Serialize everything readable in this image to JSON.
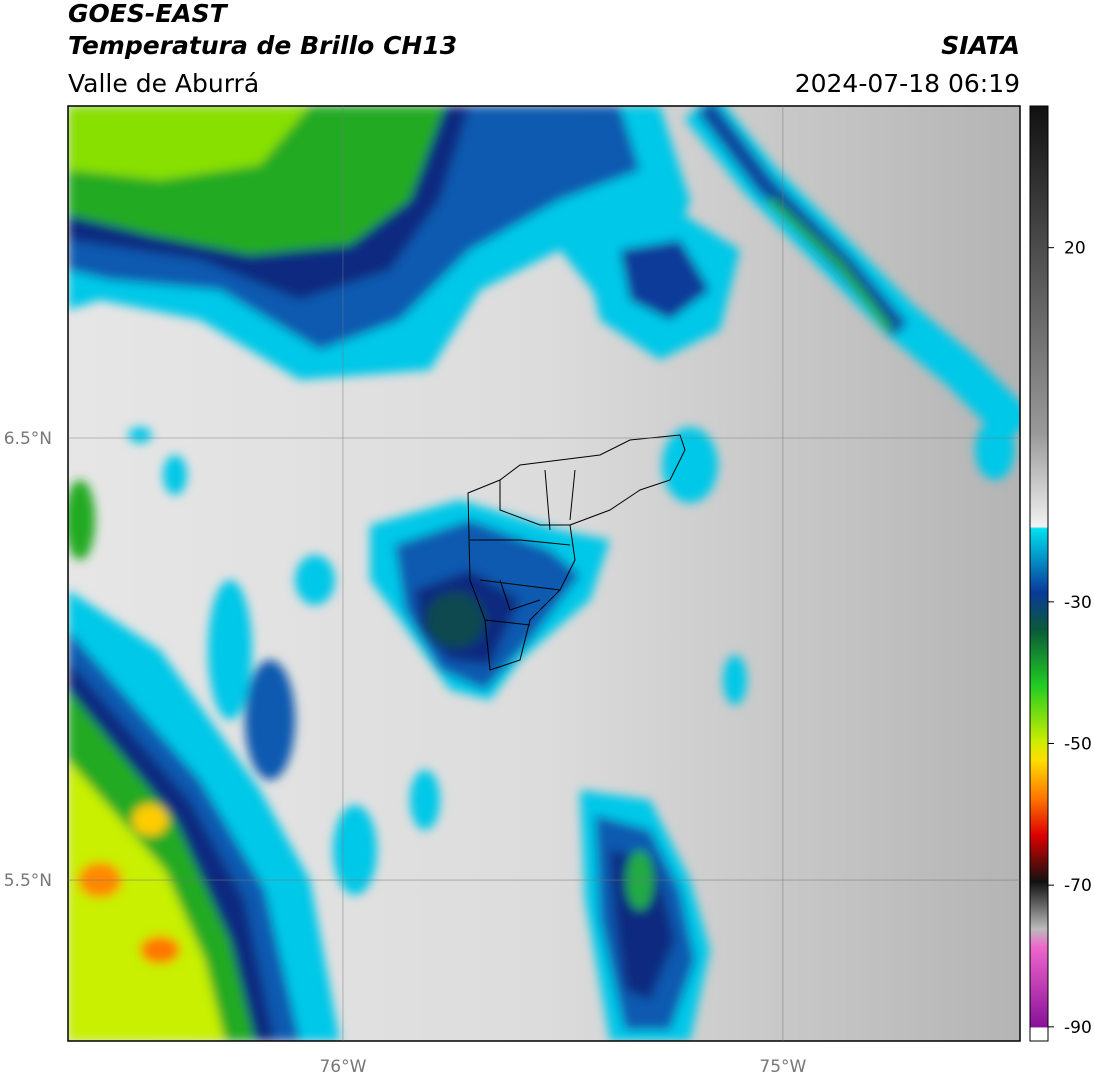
{
  "header": {
    "title": "GOES-EAST",
    "subtitle": "Temperatura de Brillo CH13",
    "region": "Valle de Aburrá",
    "agency": "SIATA",
    "datetime": "2024-07-18 06:19"
  },
  "map": {
    "lonlim": [
      -76.625,
      -74.461
    ],
    "latlim": [
      5.136,
      7.251
    ],
    "lon_ticks": [
      {
        "value": -76,
        "label": "76°W"
      },
      {
        "value": -75,
        "label": "75°W"
      }
    ],
    "lat_ticks": [
      {
        "value": 6.5,
        "label": "6.5°N"
      },
      {
        "value": 5.5,
        "label": "5.5°N"
      }
    ]
  },
  "colorbar": {
    "lim": [
      -92,
      40
    ],
    "ticks": [
      20,
      -30,
      -50,
      -70,
      -90
    ]
  }
}
